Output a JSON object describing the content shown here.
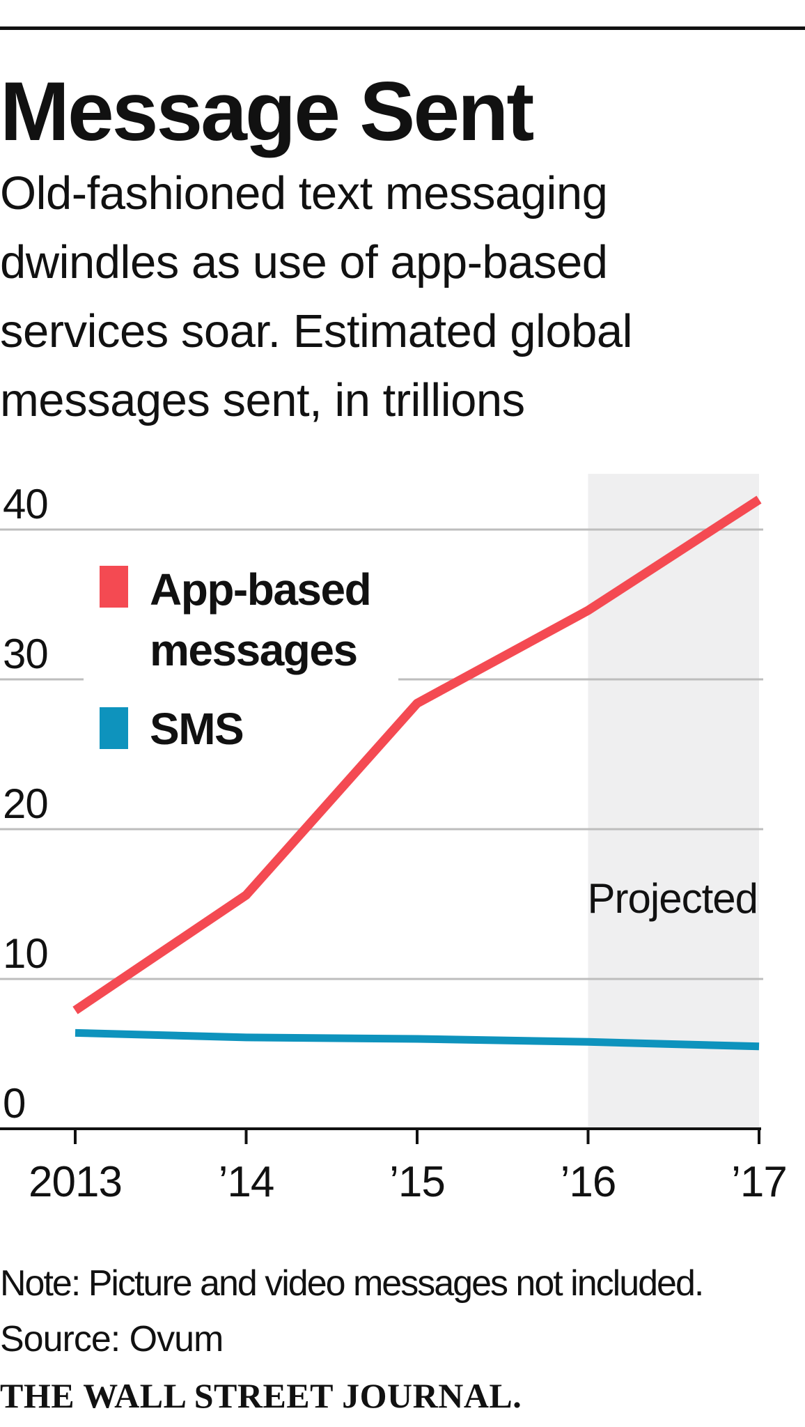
{
  "chart_data": {
    "type": "line",
    "title": "Message Sent",
    "subtitle": "Old-fashioned text messaging dwindles as use of app-based services soar. Estimated global messages sent, in trillions",
    "categories": [
      "2013",
      "’14",
      "’15",
      "’16",
      "’17"
    ],
    "ylim": [
      0,
      40
    ],
    "y_ticks": [
      0,
      10,
      20,
      30,
      40
    ],
    "grid": true,
    "series": [
      {
        "name": "App-based messages",
        "color": "#f44a52",
        "values": [
          7.9,
          15.6,
          28.4,
          34.6,
          42.0
        ]
      },
      {
        "name": "SMS",
        "color": "#0e93bd",
        "values": [
          6.4,
          6.1,
          6.0,
          5.8,
          5.5
        ]
      }
    ],
    "legend": [
      {
        "lines": [
          "App-based",
          "messages"
        ],
        "color": "#f44a52"
      },
      {
        "lines": [
          "SMS"
        ],
        "color": "#0e93bd"
      }
    ],
    "shaded_region": {
      "from_category": "’16",
      "to_category": "’17",
      "label": "Projected"
    },
    "note": "Note: Picture and video messages not included.",
    "source": "Source: Ovum",
    "brand": "THE WALL STREET JOURNAL."
  }
}
